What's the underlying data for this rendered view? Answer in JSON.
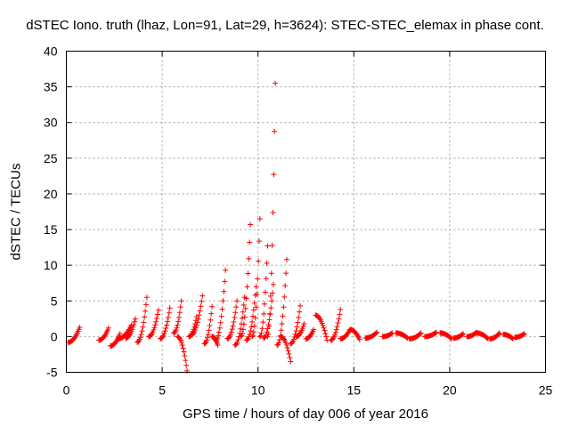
{
  "chart_data": {
    "type": "scatter",
    "title": "dSTEC Iono. truth (lhaz, Lon=91, Lat=29, h=3624): STEC-STEC_elemax in phase cont.",
    "xlabel": "GPS time / hours of day 006 of year 2016",
    "ylabel": "dSTEC  / TECUs",
    "xlim": [
      0,
      25
    ],
    "ylim": [
      -5,
      40
    ],
    "xticks": [
      0,
      5,
      10,
      15,
      20,
      25
    ],
    "yticks": [
      -5,
      0,
      5,
      10,
      15,
      20,
      25,
      30,
      35,
      40
    ],
    "grid": true,
    "grid_style": "dotted",
    "marker": "+",
    "color": "#ff0000",
    "arcs": [
      {
        "x0": 0.1,
        "x1": 0.7,
        "y0": -0.8,
        "y1": 1.3
      },
      {
        "x0": 1.7,
        "x1": 2.2,
        "y0": -0.5,
        "y1": 1.2
      },
      {
        "x0": 2.3,
        "x1": 2.8,
        "y0": -1.3,
        "y1": 0.4
      },
      {
        "x0": 2.7,
        "x1": 3.4,
        "y0": -0.3,
        "y1": 1.6
      },
      {
        "x0": 3.1,
        "x1": 3.6,
        "y0": -0.2,
        "y1": 2.5
      },
      {
        "x0": 3.7,
        "x1": 4.2,
        "y0": -0.8,
        "y1": 5.5
      },
      {
        "x0": 4.3,
        "x1": 4.8,
        "y0": 0.0,
        "y1": 3.7
      },
      {
        "x0": 4.9,
        "x1": 5.4,
        "y0": -0.3,
        "y1": 4.0
      },
      {
        "x0": 5.6,
        "x1": 6.0,
        "y0": 0.5,
        "y1": 5.0
      },
      {
        "x0": 5.8,
        "x1": 6.3,
        "y0": 0.0,
        "y1": -4.8
      },
      {
        "x0": 6.4,
        "x1": 6.8,
        "y0": 0.0,
        "y1": 2.8
      },
      {
        "x0": 6.5,
        "x1": 7.1,
        "y0": 0.2,
        "y1": 5.7
      },
      {
        "x0": 7.2,
        "x1": 7.6,
        "y0": -1.0,
        "y1": 4.2
      },
      {
        "x0": 7.6,
        "x1": 7.9,
        "y0": 0.0,
        "y1": -1.2
      },
      {
        "x0": 7.8,
        "x1": 8.3,
        "y0": -0.5,
        "y1": 9.3
      },
      {
        "x0": 8.4,
        "x1": 8.9,
        "y0": -0.3,
        "y1": 5.0
      },
      {
        "x0": 8.8,
        "x1": 9.3,
        "y0": -1.2,
        "y1": 5.5
      },
      {
        "x0": 9.1,
        "x1": 9.6,
        "y0": 0.0,
        "y1": 15.7
      },
      {
        "x0": 9.4,
        "x1": 9.9,
        "y0": -0.5,
        "y1": 7.0
      },
      {
        "x0": 9.7,
        "x1": 10.1,
        "y0": 0.0,
        "y1": 16.5
      },
      {
        "x0": 10.1,
        "x1": 10.5,
        "y0": 0.0,
        "y1": 12.7
      },
      {
        "x0": 10.3,
        "x1": 10.8,
        "y0": -0.2,
        "y1": 7.3
      },
      {
        "x0": 10.5,
        "x1": 10.9,
        "y0": 0.0,
        "y1": 35.5
      },
      {
        "x0": 11.0,
        "x1": 11.5,
        "y0": -1.2,
        "y1": 10.8
      },
      {
        "x0": 11.2,
        "x1": 11.7,
        "y0": 0.0,
        "y1": -3.5
      },
      {
        "x0": 11.7,
        "x1": 12.2,
        "y0": -1.0,
        "y1": 4.3
      },
      {
        "x0": 12.0,
        "x1": 12.4,
        "y0": 0.0,
        "y1": 1.8
      },
      {
        "x0": 12.5,
        "x1": 12.9,
        "y0": -0.3,
        "y1": 1.0
      },
      {
        "x0": 13.0,
        "x1": 13.6,
        "y0": 3.0,
        "y1": -0.5
      },
      {
        "x0": 13.8,
        "x1": 14.3,
        "y0": -0.5,
        "y1": 3.8
      },
      {
        "x0": 14.3,
        "x1": 14.8,
        "y0": -0.3,
        "y1": 1.0
      },
      {
        "x0": 14.8,
        "x1": 15.3,
        "y0": 1.0,
        "y1": -0.4
      },
      {
        "x0": 15.6,
        "x1": 16.2,
        "y0": -0.2,
        "y1": 0.6
      },
      {
        "x0": 16.5,
        "x1": 17.0,
        "y0": 0.0,
        "y1": 0.5
      },
      {
        "x0": 17.2,
        "x1": 17.8,
        "y0": 0.5,
        "y1": -0.2
      },
      {
        "x0": 17.9,
        "x1": 18.5,
        "y0": -0.3,
        "y1": 0.5
      },
      {
        "x0": 18.7,
        "x1": 19.3,
        "y0": 0.0,
        "y1": 0.6
      },
      {
        "x0": 19.5,
        "x1": 20.1,
        "y0": 0.5,
        "y1": -0.3
      },
      {
        "x0": 20.2,
        "x1": 20.7,
        "y0": -0.2,
        "y1": 0.4
      },
      {
        "x0": 20.9,
        "x1": 21.4,
        "y0": 0.0,
        "y1": 0.6
      },
      {
        "x0": 21.4,
        "x1": 22.0,
        "y0": 0.5,
        "y1": -0.3
      },
      {
        "x0": 22.1,
        "x1": 22.6,
        "y0": -0.3,
        "y1": 0.5
      },
      {
        "x0": 22.8,
        "x1": 23.3,
        "y0": 0.3,
        "y1": -0.3
      },
      {
        "x0": 23.4,
        "x1": 23.9,
        "y0": -0.1,
        "y1": 0.4
      }
    ]
  }
}
